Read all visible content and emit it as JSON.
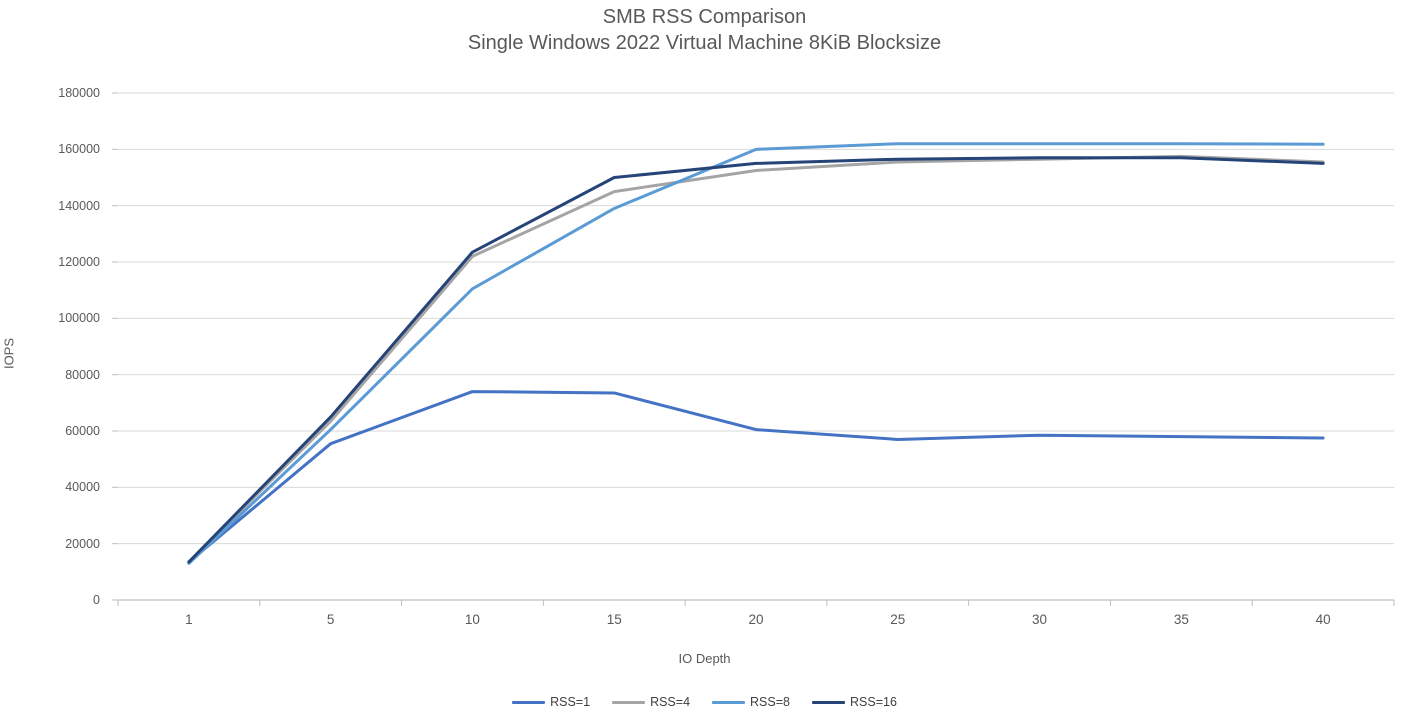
{
  "chart_data": {
    "type": "line",
    "title": "SMB RSS Comparison",
    "subtitle": "Single Windows 2022 Virtual Machine 8KiB Blocksize",
    "xlabel": "IO Depth",
    "ylabel": "IOPS",
    "categories": [
      "1",
      "5",
      "10",
      "15",
      "20",
      "25",
      "30",
      "35",
      "40"
    ],
    "series": [
      {
        "name": "RSS=1",
        "color": "#4472C4",
        "values": [
          13500,
          55500,
          74000,
          73500,
          60500,
          57000,
          58500,
          58000,
          57500
        ]
      },
      {
        "name": "RSS=4",
        "color": "#A5A5A5",
        "values": [
          13500,
          63500,
          122000,
          145000,
          152500,
          155500,
          156500,
          157500,
          155500
        ]
      },
      {
        "name": "RSS=8",
        "color": "#5B9BD5",
        "values": [
          13000,
          60500,
          110500,
          139000,
          160000,
          162000,
          162000,
          162000,
          161800
        ]
      },
      {
        "name": "RSS=16",
        "color": "#264478",
        "values": [
          13500,
          65000,
          123500,
          150000,
          155000,
          156500,
          157000,
          157000,
          155000
        ]
      }
    ],
    "ylim": [
      0,
      180000
    ],
    "ytick_step": 20000,
    "ytick_labels": [
      "0",
      "20000",
      "40000",
      "60000",
      "80000",
      "100000",
      "120000",
      "140000",
      "160000",
      "180000"
    ],
    "grid": true,
    "legend_position": "bottom"
  },
  "styles": {
    "text_color": "#595959",
    "grid_color": "#D9D9D9",
    "axis_color": "#BFBFBF",
    "background": "#FFFFFF"
  }
}
